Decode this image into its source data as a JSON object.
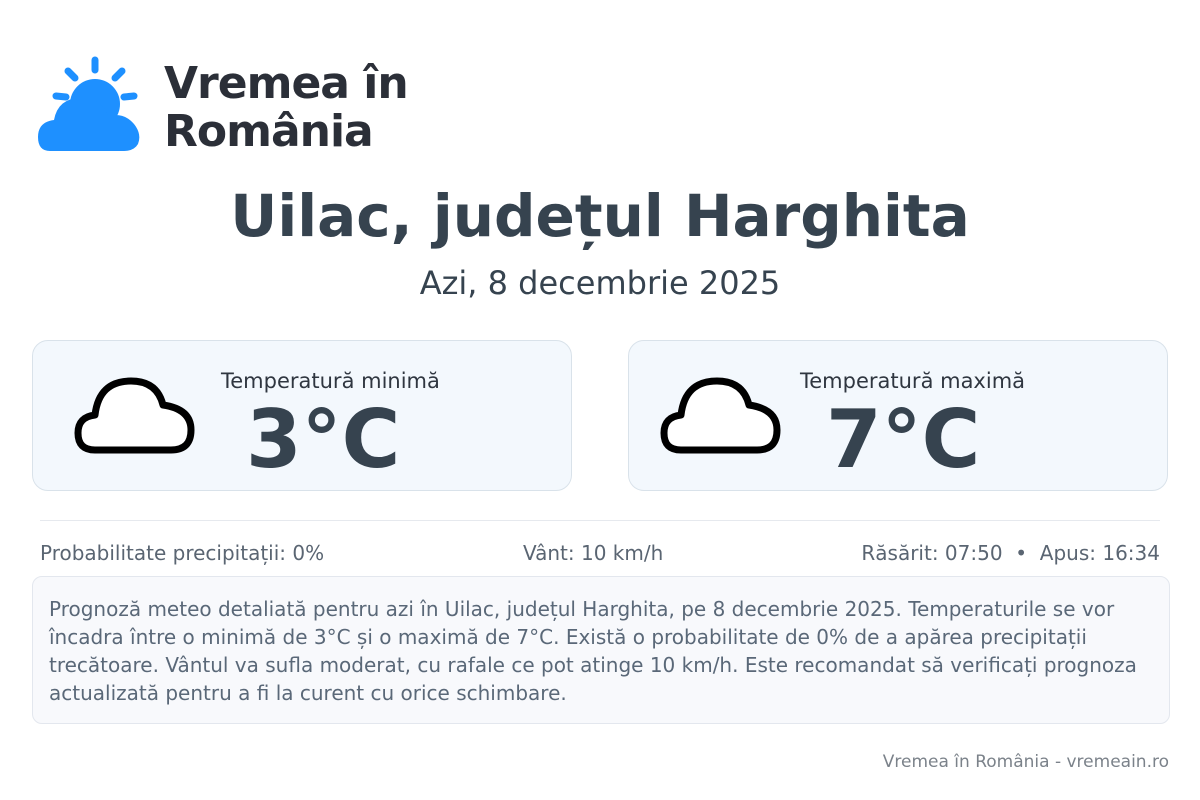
{
  "brand": {
    "name_line1": "Vremea în",
    "name_line2": "România",
    "logo_color": "#1e90ff"
  },
  "header": {
    "title": "Uilac, județul Harghita",
    "date": "Azi, 8 decembrie 2025"
  },
  "cards": [
    {
      "label": "Temperatură minimă",
      "value": "3°C",
      "icon": "cloud-icon"
    },
    {
      "label": "Temperatură maximă",
      "value": "7°C",
      "icon": "cloud-icon"
    }
  ],
  "stats": {
    "precipitation": "Probabilitate precipitații: 0%",
    "wind": "Vânt: 10 km/h",
    "sun": "Răsărit: 07:50  •  Apus: 16:34"
  },
  "description": "Prognoză meteo detaliată pentru azi în Uilac, județul Harghita, pe 8 decembrie 2025. Temperaturile se vor încadra între o minimă de 3°C și o maximă de 7°C. Există o probabilitate de 0% de a apărea precipitații trecătoare. Vântul va sufla moderat, cu rafale ce pot atinge 10 km/h. Este recomandat să verificați prognoza actualizată pentru a fi la curent cu orice schimbare.",
  "footer": "Vremea în România - vremeain.ro"
}
